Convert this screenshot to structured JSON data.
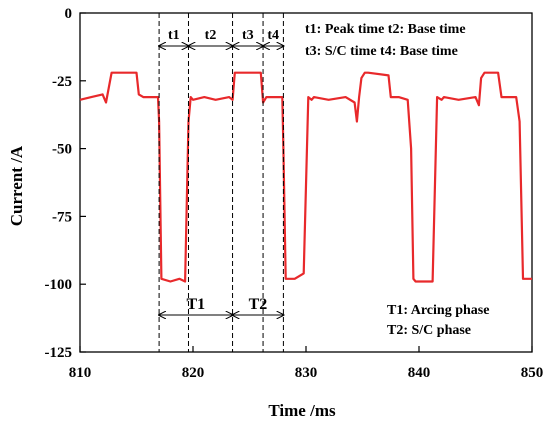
{
  "chart_data": {
    "type": "line",
    "xlabel": "Time  /ms",
    "ylabel": "Current  /A",
    "xlim": [
      810,
      850
    ],
    "ylim": [
      -125,
      0
    ],
    "xticks": [
      810,
      820,
      830,
      840,
      850
    ],
    "yticks": [
      0,
      -25,
      -50,
      -75,
      -100,
      -125
    ],
    "grid": false,
    "line_color": "#e8292b",
    "series": [
      {
        "x": [
          810,
          811,
          812,
          812.3,
          812.8,
          815,
          815.2,
          815.6,
          816.5,
          816.9,
          817.0,
          817.2,
          818.0,
          818.8,
          819.3,
          819.6,
          819.8,
          820.0,
          821,
          822,
          823.2,
          823.5,
          823.7,
          826.0,
          826.2,
          826.5,
          827.6,
          827.9,
          828.0,
          828.2,
          829,
          829.8,
          830.2,
          830.5,
          830.7,
          832,
          833.5,
          834.3,
          834.5,
          834.7,
          834.9,
          835.2,
          835.5,
          837.3,
          837.5,
          838.2,
          839.0,
          839.3,
          839.5,
          839.7,
          840.5,
          841.2,
          841.6,
          842.0,
          842.2,
          843.5,
          845.0,
          845.3,
          845.5,
          845.8,
          847.0,
          847.3,
          848.0,
          848.6,
          848.9,
          849.2,
          850.0
        ],
        "y": [
          -32,
          -31,
          -30,
          -33,
          -22,
          -22,
          -30,
          -31,
          -31,
          -31,
          -40,
          -98,
          -99,
          -98,
          -99,
          -40,
          -31,
          -32,
          -31,
          -32,
          -31,
          -32,
          -22,
          -22,
          -33,
          -31,
          -31,
          -31,
          -50,
          -98,
          -98,
          -96,
          -31,
          -32,
          -31,
          -32,
          -31,
          -33,
          -40,
          -31,
          -24,
          -22,
          -22,
          -23,
          -31,
          -31,
          -32,
          -50,
          -98,
          -99,
          -99,
          -99,
          -31,
          -32,
          -31,
          -32,
          -31,
          -34,
          -24,
          -22,
          -22,
          -31,
          -31,
          -31,
          -40,
          -98,
          -98
        ]
      }
    ],
    "phase_boundaries_ms": [
      817.0,
      819.6,
      823.5,
      826.2,
      828.0
    ],
    "spans": {
      "t1": "t1",
      "t2": "t2",
      "t3": "t3",
      "t4": "t4",
      "T1": "T1",
      "T2": "T2"
    },
    "legend_top": {
      "line1": "t1: Peak time  t2: Base time",
      "line2": "t3: S/C time    t4: Base time"
    },
    "legend_bottom": {
      "line1": "T1:  Arcing phase",
      "line2": "T2:   S/C phase"
    }
  }
}
